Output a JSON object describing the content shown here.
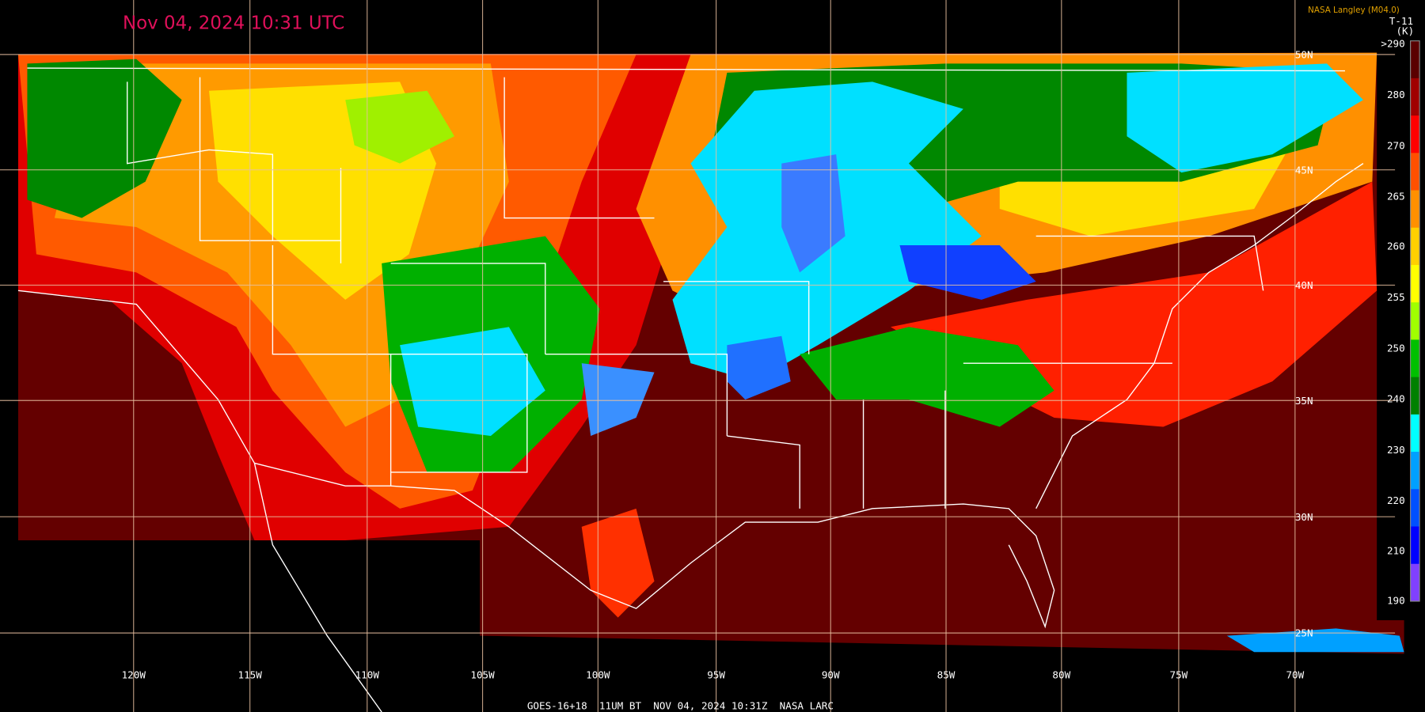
{
  "header": {
    "timestamp": "Nov 04, 2024 10:31 UTC",
    "credit": "NASA Langley (M04.0)",
    "product": "T-11",
    "unit": "(K)"
  },
  "colorbar": {
    "labels": [
      ">290",
      "280",
      "270",
      "265",
      "260",
      "255",
      "250",
      "240",
      "230",
      "220",
      "210",
      "190"
    ]
  },
  "longitude_labels": [
    "120W",
    "115W",
    "110W",
    "105W",
    "100W",
    "95W",
    "90W",
    "85W",
    "80W",
    "75W",
    "70W"
  ],
  "latitude_labels": [
    "50N",
    "45N",
    "40N",
    "35N",
    "30N",
    "25N"
  ],
  "footer": "GOES-16+18  11UM BT  NOV 04, 2024 10:31Z  NASA LARC"
}
